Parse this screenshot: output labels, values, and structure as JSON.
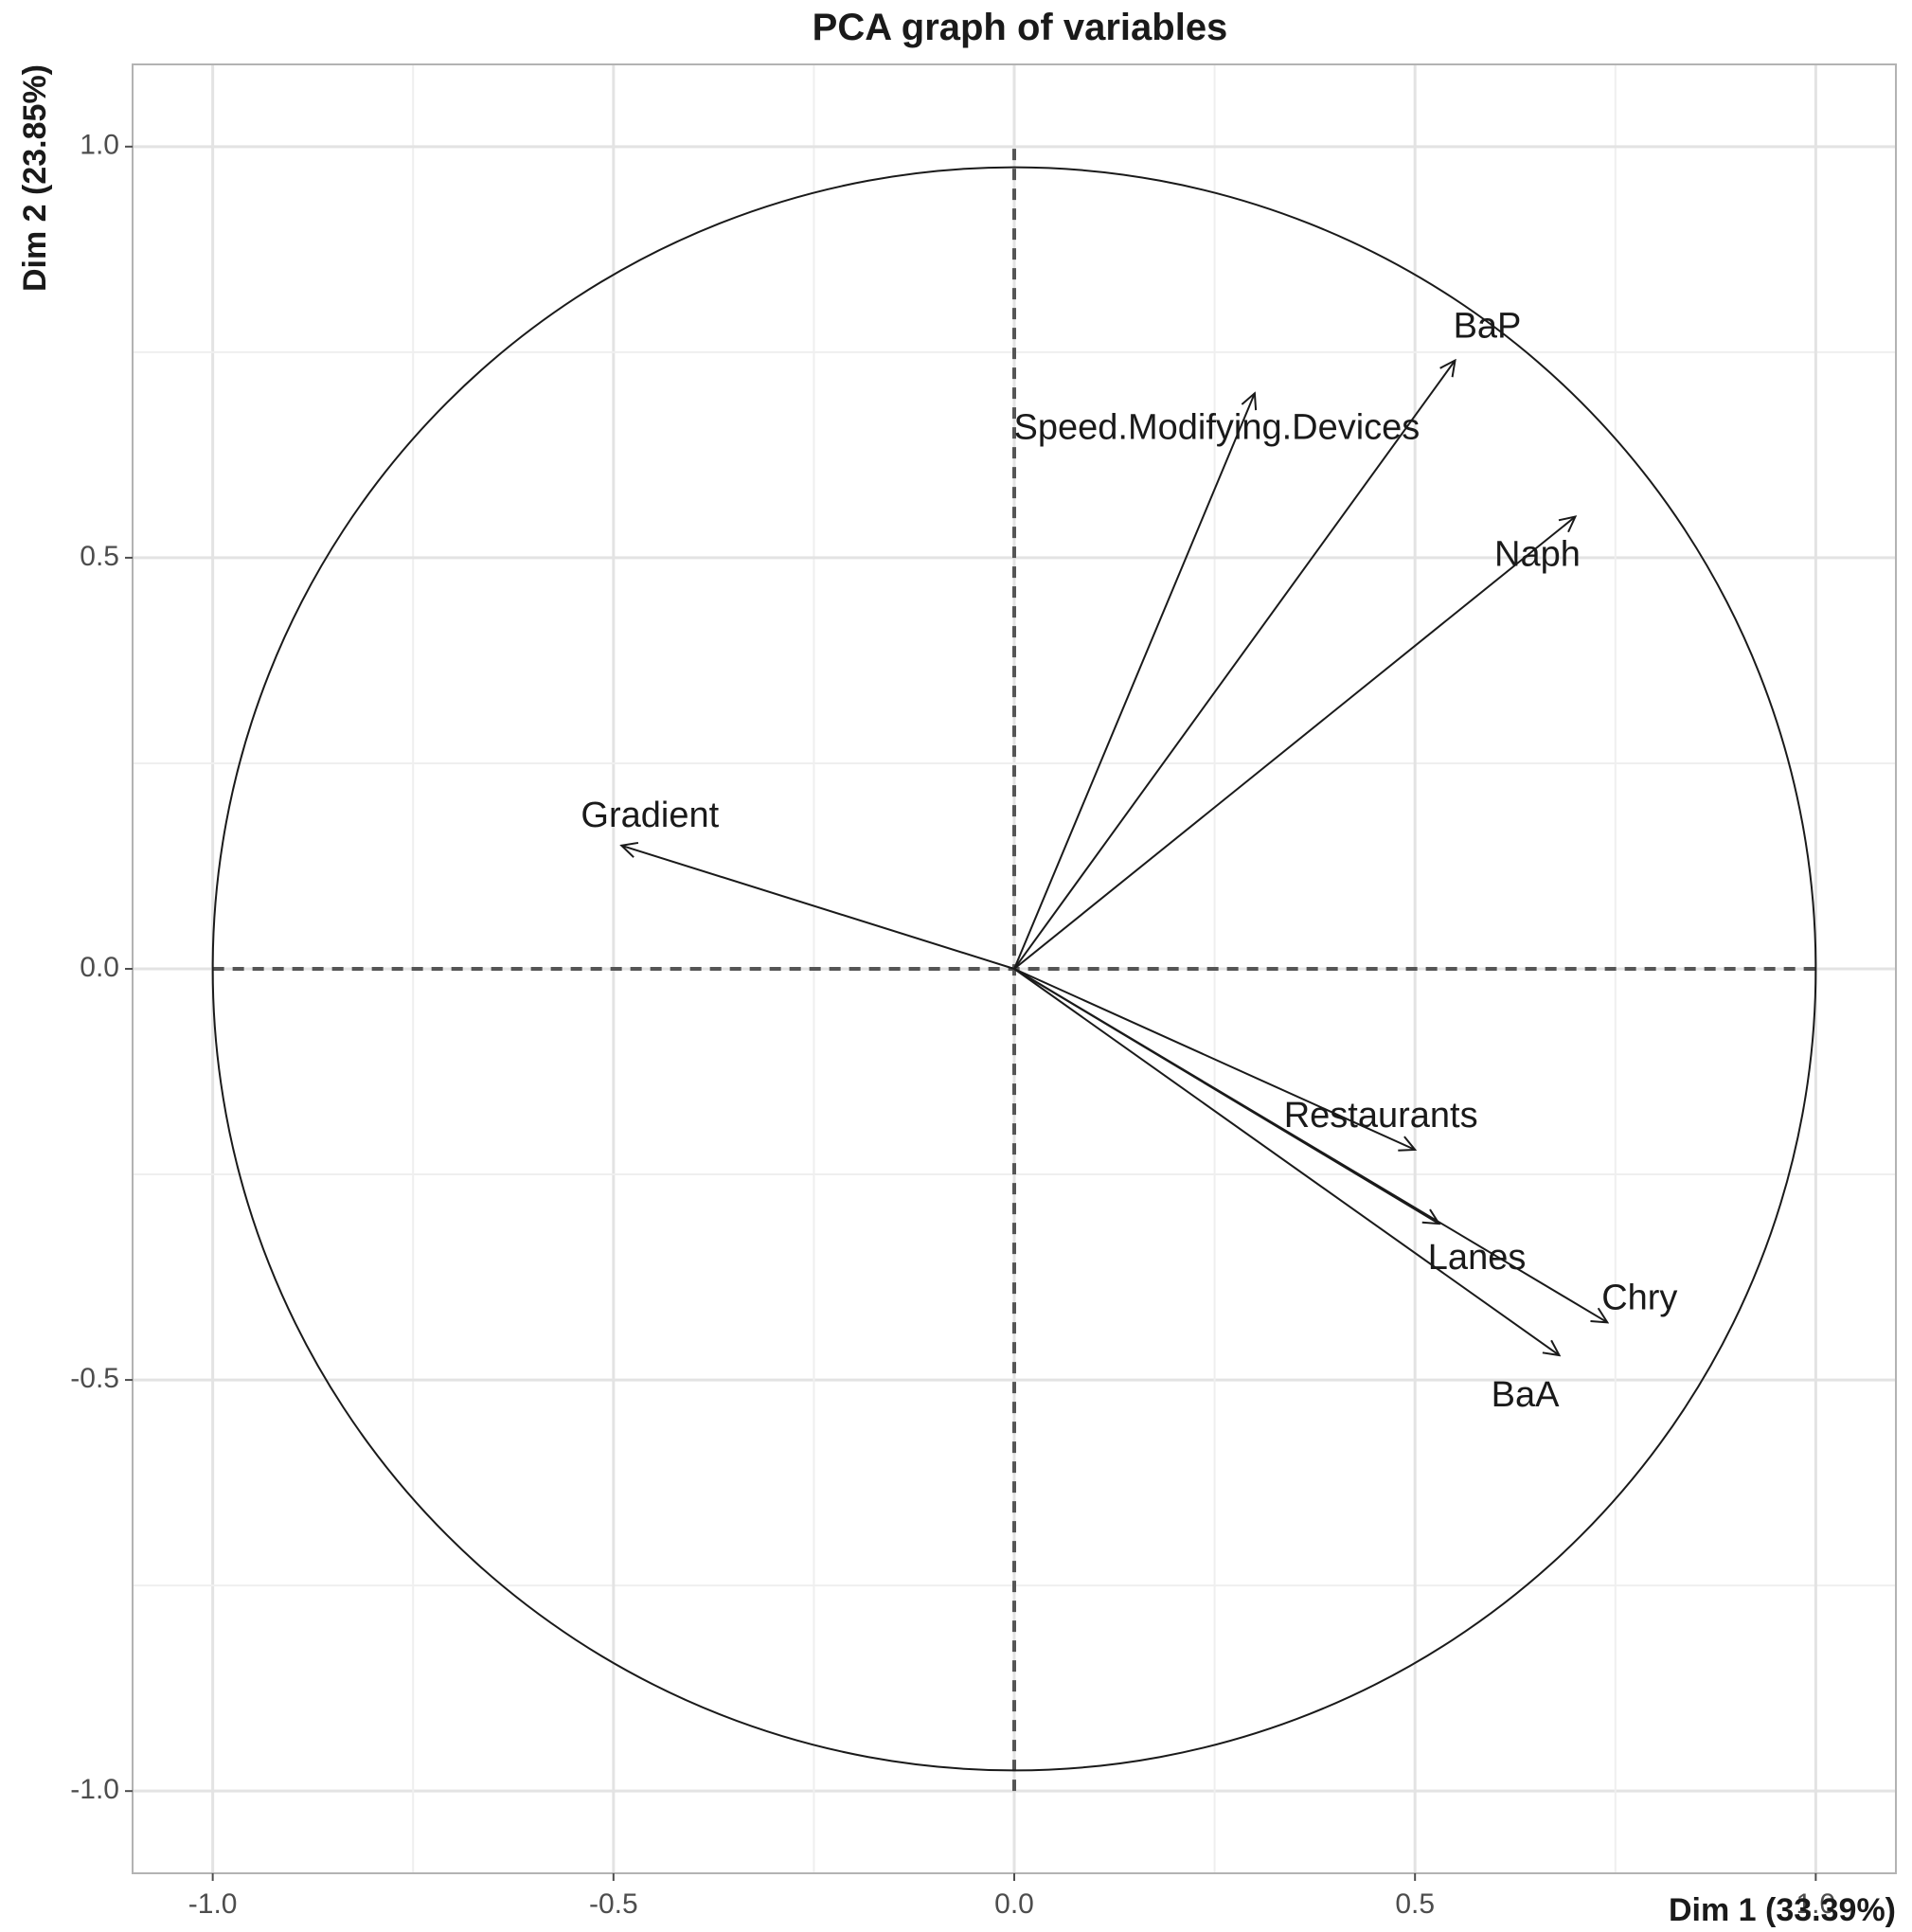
{
  "chart_data": {
    "type": "scatter",
    "title": "PCA graph of variables",
    "xlabel": "Dim 1 (33.39%)",
    "ylabel": "Dim 2 (23.85%)",
    "xlim": [
      -1.1,
      1.1
    ],
    "ylim": [
      -1.1,
      1.1
    ],
    "xticks": [
      -1.0,
      -0.5,
      0.0,
      0.5,
      1.0
    ],
    "yticks": [
      -1.0,
      -0.5,
      0.0,
      0.5,
      1.0
    ],
    "xtick_labels": [
      "-1.0",
      "-0.5",
      "0.0",
      "0.5",
      "1.0"
    ],
    "ytick_labels": [
      "-1.0",
      "-0.5",
      "0.0",
      "0.5",
      "1.0"
    ],
    "grid": true,
    "correlation_circle_radius": 1.0,
    "reference_lines": "dashed at x=0 and y=0",
    "variables": [
      {
        "name": "BaP",
        "x": 0.55,
        "y": 0.74
      },
      {
        "name": "Speed.Modifying.Devices",
        "x": 0.3,
        "y": 0.7
      },
      {
        "name": "Naph",
        "x": 0.7,
        "y": 0.55
      },
      {
        "name": "Gradient",
        "x": -0.49,
        "y": 0.15
      },
      {
        "name": "Restaurants",
        "x": 0.5,
        "y": -0.22
      },
      {
        "name": "Lanes",
        "x": 0.53,
        "y": -0.31
      },
      {
        "name": "Chry",
        "x": 0.74,
        "y": -0.43
      },
      {
        "name": "BaA",
        "x": 0.68,
        "y": -0.47
      }
    ]
  }
}
